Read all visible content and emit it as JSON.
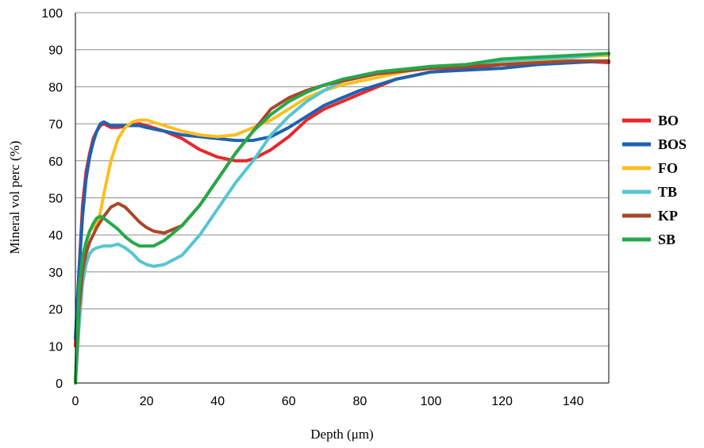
{
  "chart_data": {
    "type": "line",
    "xlabel": "Depth (μm)",
    "ylabel": "Mineral vol perc (%)",
    "xlim": [
      0,
      150
    ],
    "ylim": [
      0,
      100
    ],
    "xticks": [
      0,
      20,
      40,
      60,
      80,
      100,
      120,
      140
    ],
    "yticks": [
      0,
      10,
      20,
      30,
      40,
      50,
      60,
      70,
      80,
      90,
      100
    ],
    "grid": "horizontal",
    "legend_position": "right",
    "series": [
      {
        "name": "BO",
        "color": "#e8282b",
        "x": [
          0,
          1,
          2,
          3,
          4,
          5,
          6,
          7,
          8,
          10,
          12,
          15,
          18,
          20,
          25,
          30,
          35,
          40,
          45,
          48,
          50,
          55,
          60,
          65,
          70,
          75,
          80,
          85,
          90,
          95,
          100,
          110,
          120,
          130,
          140,
          150
        ],
        "y": [
          10,
          30,
          48,
          57,
          62,
          66,
          68,
          69.5,
          70,
          69,
          69,
          69.5,
          70,
          69.5,
          68,
          66,
          63,
          61,
          60,
          60,
          60.5,
          63,
          66.5,
          71,
          74,
          76,
          78,
          80,
          82,
          83,
          84,
          85,
          86,
          86,
          87,
          86.5
        ]
      },
      {
        "name": "BOS",
        "color": "#1e62b0",
        "x": [
          0,
          1,
          2,
          3,
          4,
          5,
          6,
          7,
          8,
          9,
          10,
          12,
          15,
          18,
          20,
          25,
          30,
          35,
          40,
          45,
          50,
          55,
          60,
          65,
          70,
          75,
          80,
          85,
          90,
          95,
          100,
          110,
          120,
          130,
          140,
          150
        ],
        "y": [
          12,
          30,
          45,
          55,
          61,
          65,
          68,
          70,
          70.5,
          70,
          69.5,
          69.5,
          69.5,
          69.5,
          69,
          68,
          67,
          66.5,
          66,
          65.5,
          65.5,
          66.5,
          69,
          72,
          75,
          77,
          79,
          80.5,
          82,
          83,
          84,
          84.5,
          85,
          86,
          86.5,
          87
        ]
      },
      {
        "name": "FO",
        "color": "#fbbf21",
        "x": [
          0,
          1,
          2,
          3,
          4,
          5,
          6,
          7,
          8,
          10,
          12,
          14,
          16,
          18,
          20,
          25,
          30,
          35,
          40,
          45,
          50,
          55,
          60,
          65,
          70,
          75,
          80,
          85,
          90,
          95,
          100,
          110,
          120,
          130,
          140,
          150
        ],
        "y": [
          0,
          20,
          32,
          38,
          41,
          42,
          43,
          46,
          51,
          60,
          66,
          69,
          70.5,
          71,
          71,
          69.5,
          68,
          67,
          66.5,
          67,
          69,
          71,
          74,
          77,
          79,
          80.5,
          81.5,
          82.5,
          83.5,
          84.5,
          85,
          86,
          86.5,
          87,
          88,
          88.5
        ]
      },
      {
        "name": "TB",
        "color": "#56c5d0",
        "x": [
          0,
          1,
          2,
          3,
          4,
          5,
          6,
          8,
          10,
          12,
          14,
          16,
          18,
          20,
          22,
          25,
          30,
          35,
          40,
          45,
          50,
          55,
          60,
          65,
          70,
          75,
          80,
          85,
          90,
          95,
          100,
          110,
          120,
          130,
          140,
          150
        ],
        "y": [
          0,
          15,
          27,
          32,
          35,
          36,
          36.5,
          37,
          37,
          37.5,
          36.5,
          35,
          33,
          32,
          31.5,
          32,
          34.5,
          40,
          47,
          54,
          60,
          67,
          72,
          76,
          79,
          81.5,
          83,
          84,
          84.5,
          85,
          85.5,
          86,
          87,
          87.5,
          88,
          89
        ]
      },
      {
        "name": "KP",
        "color": "#a8482a",
        "x": [
          0,
          1,
          2,
          3,
          4,
          5,
          6,
          8,
          10,
          12,
          14,
          16,
          18,
          20,
          22,
          25,
          30,
          35,
          40,
          45,
          50,
          55,
          60,
          65,
          70,
          75,
          80,
          85,
          90,
          95,
          100,
          110,
          120,
          130,
          140,
          150
        ],
        "y": [
          0,
          20,
          30,
          35,
          38,
          40,
          42,
          45,
          47.5,
          48.5,
          47.5,
          45.5,
          43.5,
          42,
          41,
          40.5,
          42.5,
          48,
          55,
          62,
          68,
          74,
          77,
          79,
          80.5,
          81.5,
          82.5,
          83.5,
          84,
          84.5,
          85,
          85.5,
          86,
          86.5,
          87,
          87
        ]
      },
      {
        "name": "SB",
        "color": "#26a84a",
        "x": [
          0,
          1,
          2,
          3,
          4,
          5,
          6,
          7,
          8,
          10,
          12,
          14,
          16,
          18,
          20,
          22,
          25,
          30,
          35,
          40,
          45,
          50,
          55,
          60,
          65,
          70,
          75,
          80,
          85,
          90,
          95,
          100,
          110,
          120,
          130,
          140,
          150
        ],
        "y": [
          0,
          25,
          34,
          38,
          41,
          43,
          44.5,
          45,
          44.5,
          43,
          41.5,
          39.5,
          38,
          37,
          37,
          37,
          38.5,
          42.5,
          48,
          55,
          62,
          68,
          72.5,
          76,
          78.5,
          80.5,
          82,
          83,
          84,
          84.5,
          85,
          85.5,
          86,
          87.5,
          88,
          88.5,
          89
        ]
      }
    ]
  }
}
